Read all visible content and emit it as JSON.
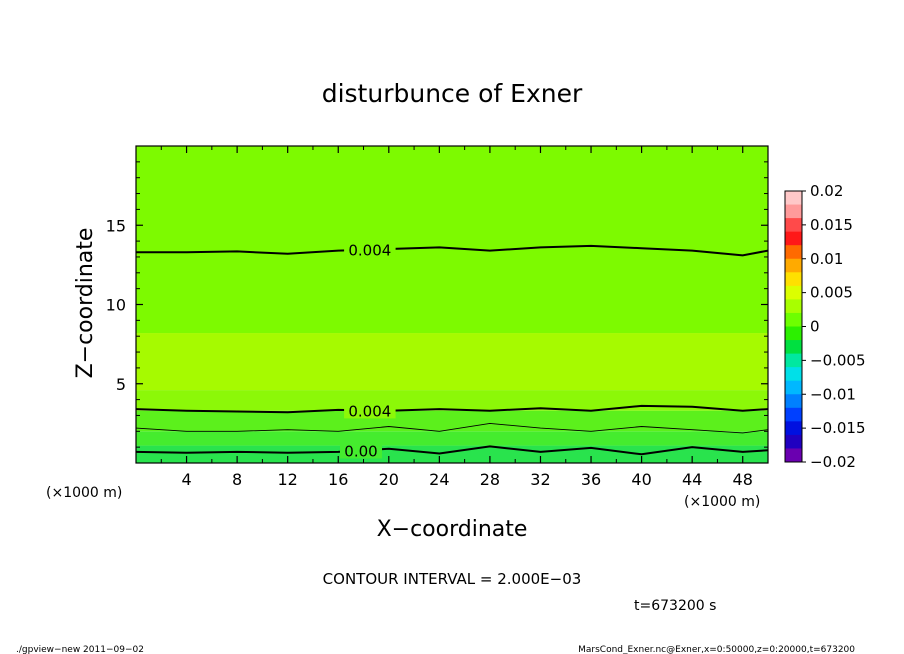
{
  "chart_data": {
    "type": "heatmap",
    "title": "disturbunce of Exner",
    "xlabel": "X−coordinate",
    "ylabel": "Z−coordinate",
    "x_unit": "(×1000 m)",
    "y_unit": "(×1000 m)",
    "xlim": [
      0,
      50
    ],
    "ylim": [
      0,
      20
    ],
    "x_ticks": [
      4,
      8,
      12,
      16,
      20,
      24,
      28,
      32,
      36,
      40,
      44,
      48
    ],
    "y_ticks": [
      5,
      10,
      15
    ],
    "contour_interval_text": "CONTOUR INTERVAL = 2.000E−03",
    "time_text": "t=673200 s",
    "colorbar": {
      "ticks": [
        "0.02",
        "0.015",
        "0.01",
        "0.005",
        "0",
        "−0.005",
        "−0.01",
        "−0.015",
        "−0.02"
      ],
      "colors": [
        "#ffc8c8",
        "#ff9a9a",
        "#ff4a4a",
        "#ff1818",
        "#ff6a00",
        "#ffaa00",
        "#ffe000",
        "#dcff00",
        "#a8ff00",
        "#6eff00",
        "#2cf000",
        "#00e040",
        "#00e8a0",
        "#00e0e8",
        "#00b8ff",
        "#0080ff",
        "#0040ff",
        "#0010e0",
        "#2000c0",
        "#6a00b0"
      ]
    },
    "bands": [
      {
        "z_bottom": 0,
        "z_top": 1.1,
        "color": "#29e34d"
      },
      {
        "z_bottom": 1.1,
        "z_top": 2.0,
        "color": "#45ec2e"
      },
      {
        "z_bottom": 2.0,
        "z_top": 3.3,
        "color": "#5cf01c"
      },
      {
        "z_bottom": 3.3,
        "z_top": 4.6,
        "color": "#8cf808"
      },
      {
        "z_bottom": 4.6,
        "z_top": 8.2,
        "color": "#a6fa00"
      },
      {
        "z_bottom": 8.2,
        "z_top": 20,
        "color": "#7dfa00"
      }
    ],
    "contours": [
      {
        "label": "0.004",
        "label_x": 18.5,
        "style": "thick",
        "x": [
          0,
          4,
          8,
          12,
          16,
          20,
          24,
          28,
          32,
          36,
          40,
          44,
          48,
          50
        ],
        "z": [
          13.3,
          13.3,
          13.35,
          13.2,
          13.4,
          13.5,
          13.6,
          13.4,
          13.6,
          13.7,
          13.55,
          13.4,
          13.1,
          13.4
        ]
      },
      {
        "label": "0.004",
        "label_x": 18.5,
        "style": "thick",
        "x": [
          0,
          4,
          8,
          12,
          16,
          20,
          24,
          28,
          32,
          36,
          40,
          44,
          48,
          50
        ],
        "z": [
          3.4,
          3.3,
          3.25,
          3.2,
          3.35,
          3.3,
          3.4,
          3.3,
          3.45,
          3.3,
          3.6,
          3.55,
          3.3,
          3.4
        ]
      },
      {
        "label": "",
        "label_x": 0,
        "style": "thin",
        "x": [
          0,
          4,
          8,
          12,
          16,
          20,
          24,
          28,
          32,
          36,
          40,
          44,
          48,
          50
        ],
        "z": [
          2.2,
          2.0,
          2.0,
          2.1,
          2.0,
          2.3,
          2.0,
          2.5,
          2.2,
          2.0,
          2.3,
          2.1,
          1.9,
          2.1
        ]
      },
      {
        "label": "0.00",
        "label_x": 17.8,
        "style": "thick",
        "x": [
          0,
          4,
          8,
          12,
          16,
          20,
          24,
          28,
          32,
          36,
          40,
          44,
          48,
          50
        ],
        "z": [
          0.7,
          0.65,
          0.7,
          0.65,
          0.7,
          0.9,
          0.6,
          1.05,
          0.7,
          0.95,
          0.55,
          1.0,
          0.7,
          0.8
        ]
      }
    ]
  },
  "footer": {
    "left": "./gpview−new   2011−09−02",
    "right": "MarsCond_Exner.nc@Exner,x=0:50000,z=0:20000,t=673200"
  }
}
